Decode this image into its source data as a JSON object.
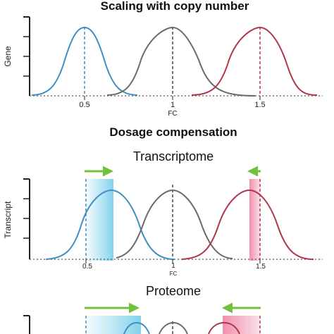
{
  "titles": {
    "top": "Scaling with copy number",
    "middle": "Dosage compensation",
    "transcriptome": "Transcriptome",
    "proteome": "Proteome"
  },
  "panel1": {
    "ylabel": "Gene",
    "xlabel": "FC",
    "ticks": [
      "0.5",
      "1",
      "1.5"
    ]
  },
  "panel2": {
    "ylabel": "Transcript",
    "xlabel": "FC",
    "ticks": [
      "0.5",
      "1",
      "1.5"
    ]
  },
  "colors": {
    "blue": "#3d8fc4",
    "gray": "#6b6b6b",
    "red": "#b3354a",
    "green": "#6fc23a",
    "blueShade": "#5cc3e6",
    "redShade": "#ee7da0"
  }
}
